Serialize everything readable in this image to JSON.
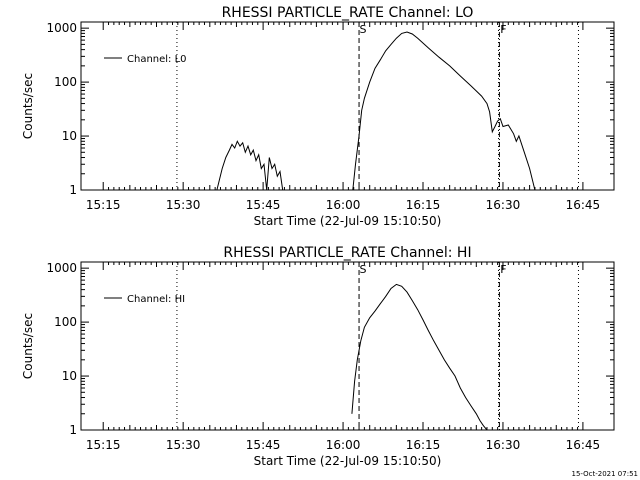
{
  "footer": {
    "date_stamp": "15-Oct-2021 07:51"
  },
  "chart_data": [
    {
      "type": "line",
      "title": "RHESSI PARTICLE_RATE Channel: LO",
      "xlabel": "Start Time (22-Jul-09 15:10:50)",
      "ylabel": "Counts/sec",
      "x_unit": "HH:MM",
      "x_ticks": [
        "15:15",
        "15:30",
        "15:45",
        "16:00",
        "16:15",
        "16:30",
        "16:45"
      ],
      "y_ticks": [
        "1",
        "10",
        "100",
        "1000"
      ],
      "y_scale": "log",
      "xlim": [
        "15:10:50",
        "16:50:50"
      ],
      "ylim": [
        1,
        1300
      ],
      "grid": false,
      "legend": "top-left",
      "series": [
        {
          "name": "Channel: L0",
          "segments": [
            {
              "x": [
                "15:36:20",
                "15:37:20",
                "15:38:00",
                "15:38:40",
                "15:39:10",
                "15:39:40",
                "15:40:10",
                "15:40:40",
                "15:41:10",
                "15:41:40",
                "15:42:10",
                "15:42:40",
                "15:43:10",
                "15:43:40",
                "15:44:10",
                "15:44:40",
                "15:45:10",
                "15:45:40",
                "15:46:10",
                "15:46:40",
                "15:47:10",
                "15:47:40",
                "15:48:10",
                "15:48:40"
              ],
              "y": [
                1,
                2.5,
                4,
                5.5,
                7,
                6,
                8,
                6.5,
                7.5,
                5,
                6.5,
                4.5,
                5.5,
                3.5,
                4.5,
                2.5,
                3,
                1,
                4,
                2.5,
                3,
                1.8,
                2.2,
                1
              ]
            },
            {
              "x": [
                "16:01:50",
                "16:02:20",
                "16:03:00",
                "16:03:30",
                "16:04:00",
                "16:05:00",
                "16:06:00",
                "16:07:00",
                "16:08:00",
                "16:09:00",
                "16:10:00",
                "16:11:00",
                "16:12:00",
                "16:13:00",
                "16:14:00",
                "16:16:00",
                "16:18:00",
                "16:20:00",
                "16:22:00",
                "16:24:00",
                "16:26:00",
                "16:27:00",
                "16:27:30",
                "16:28:00",
                "16:28:30",
                "16:29:00",
                "16:29:30",
                "16:30:00",
                "16:31:00",
                "16:32:00",
                "16:32:30",
                "16:33:00",
                "16:34:00",
                "16:35:00",
                "16:36:00"
              ],
              "y": [
                1,
                3,
                10,
                30,
                50,
                100,
                180,
                260,
                380,
                500,
                650,
                800,
                850,
                780,
                650,
                430,
                290,
                200,
                130,
                85,
                55,
                40,
                28,
                12,
                15,
                19,
                21,
                15,
                16,
                11,
                8,
                10,
                5,
                2.5,
                1
              ]
            }
          ]
        }
      ],
      "markers": [
        {
          "label": "S",
          "x": "16:03:00",
          "style": "dashed"
        },
        {
          "label": "F",
          "x": "16:29:20",
          "style": "dash-dot"
        }
      ],
      "reference_lines": {
        "x": [
          "15:28:50",
          "16:29:10",
          "16:44:10"
        ],
        "style": "dotted"
      }
    },
    {
      "type": "line",
      "title": "RHESSI PARTICLE_RATE Channel: HI",
      "xlabel": "Start Time (22-Jul-09 15:10:50)",
      "ylabel": "Counts/sec",
      "x_unit": "HH:MM",
      "x_ticks": [
        "15:15",
        "15:30",
        "15:45",
        "16:00",
        "16:15",
        "16:30",
        "16:45"
      ],
      "y_ticks": [
        "1",
        "10",
        "100",
        "1000"
      ],
      "y_scale": "log",
      "xlim": [
        "15:10:50",
        "16:50:50"
      ],
      "ylim": [
        1,
        1300
      ],
      "grid": false,
      "legend": "top-left",
      "series": [
        {
          "name": "Channel: HI",
          "segments": [
            {
              "x": [
                "16:01:40",
                "16:02:10",
                "16:02:40",
                "16:03:20",
                "16:04:00",
                "16:05:00",
                "16:06:00",
                "16:07:00",
                "16:08:00",
                "16:09:00",
                "16:10:00",
                "16:11:00",
                "16:12:00",
                "16:13:00",
                "16:14:00",
                "16:15:00",
                "16:16:00",
                "16:17:00",
                "16:18:00",
                "16:19:00",
                "16:20:00",
                "16:21:00",
                "16:22:00",
                "16:23:00",
                "16:24:00",
                "16:25:00",
                "16:25:40",
                "16:26:20",
                "16:27:00",
                "16:27:40"
              ],
              "y": [
                2,
                8,
                20,
                45,
                80,
                120,
                160,
                220,
                300,
                420,
                500,
                460,
                360,
                250,
                170,
                110,
                70,
                45,
                30,
                20,
                14,
                10,
                6,
                4,
                2.8,
                2,
                1.5,
                1.2,
                1,
                1
              ]
            }
          ]
        }
      ],
      "markers": [
        {
          "label": "S",
          "x": "16:03:00",
          "style": "dashed"
        },
        {
          "label": "F",
          "x": "16:29:20",
          "style": "dash-dot"
        }
      ],
      "reference_lines": {
        "x": [
          "15:28:50",
          "16:29:10",
          "16:44:10"
        ],
        "style": "dotted"
      }
    }
  ]
}
